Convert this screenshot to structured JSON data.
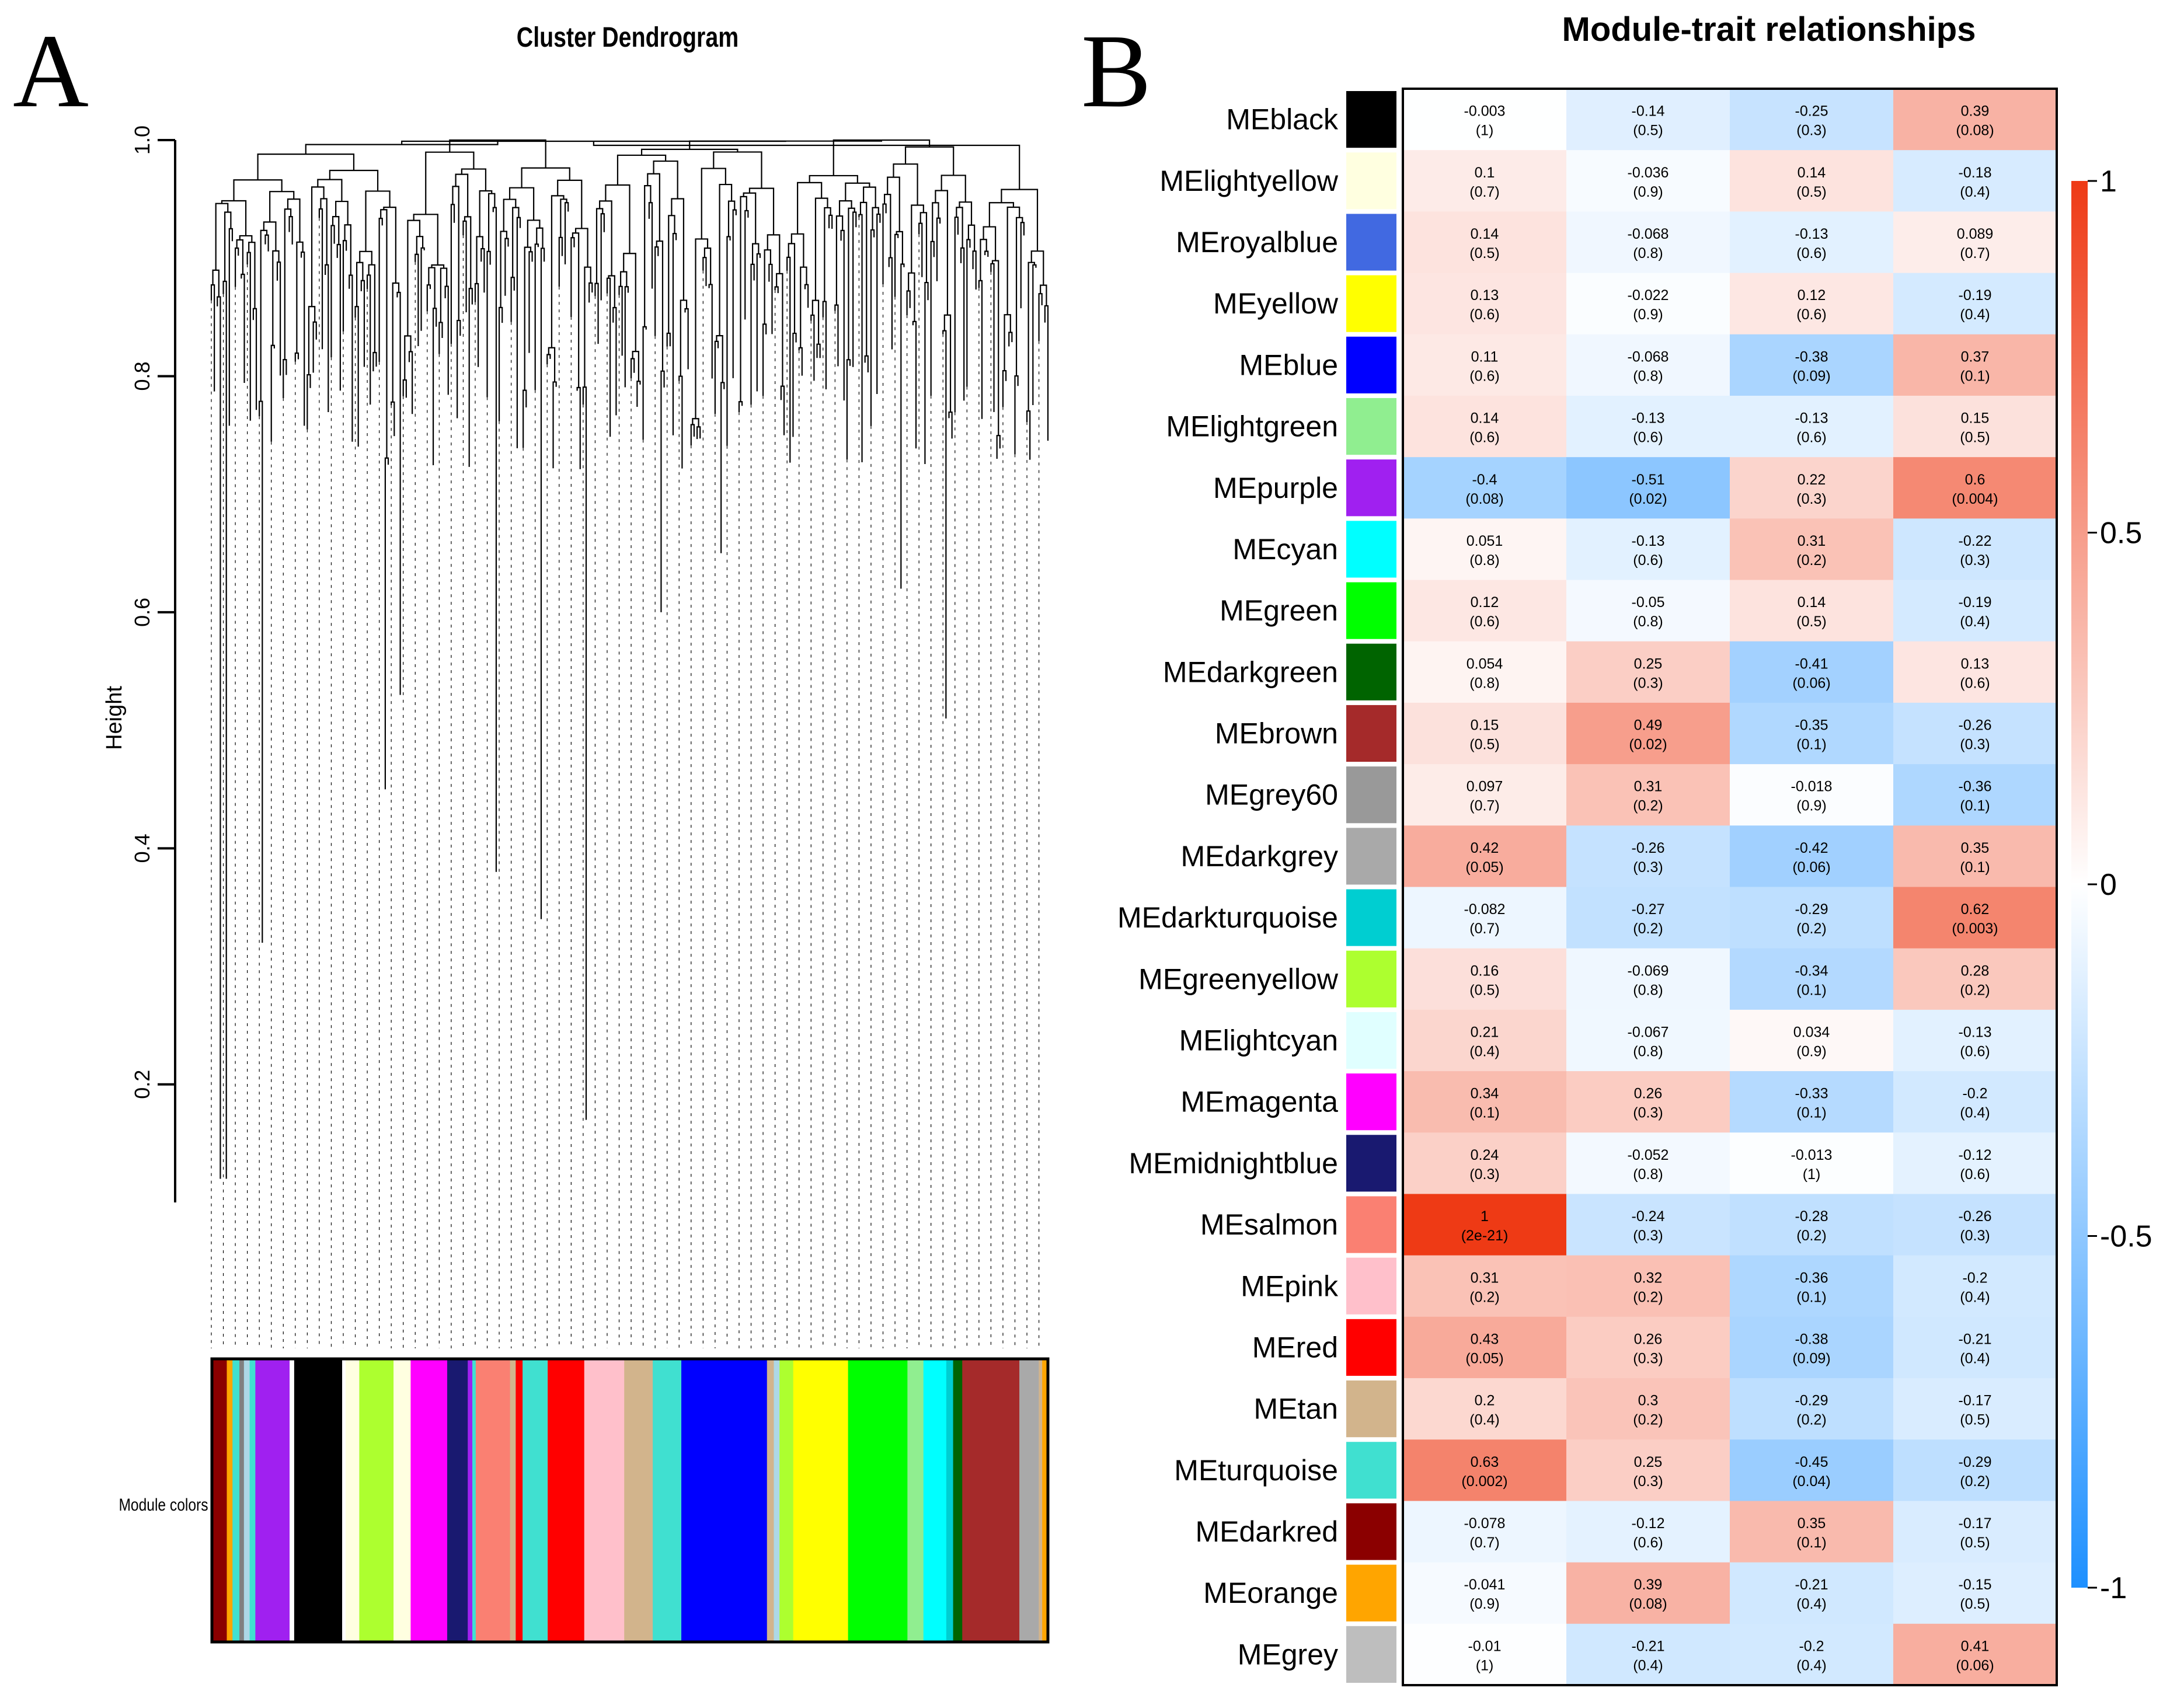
{
  "panels": {
    "a": {
      "letter": "A"
    },
    "b": {
      "letter": "B"
    }
  },
  "chart_data": [
    {
      "type": "dendrogram",
      "title": "Cluster Dendrogram",
      "ylabel": "Height",
      "yticks": [
        0.2,
        0.4,
        0.6,
        0.8,
        1.0
      ],
      "ytick_labels": [
        "0.2",
        "0.4",
        "0.6",
        "0.8",
        "1.0"
      ],
      "ylim": [
        0.1,
        1.0
      ],
      "color_bar_label": "Module colors",
      "module_color_bands": [
        {
          "color": "#8b0000",
          "weight": 1.2
        },
        {
          "color": "#ffa500",
          "weight": 0.5
        },
        {
          "color": "#40e0d0",
          "weight": 0.6
        },
        {
          "color": "#808080",
          "weight": 0.4
        },
        {
          "color": "#add8e6",
          "weight": 0.5
        },
        {
          "color": "#40e0d0",
          "weight": 0.5
        },
        {
          "color": "#a020f0",
          "weight": 3.0
        },
        {
          "color": "#ffffff",
          "weight": 0.4
        },
        {
          "color": "#000000",
          "weight": 4.2
        },
        {
          "color": "#ffffff",
          "weight": 0.3
        },
        {
          "color": "#ffffe0",
          "weight": 1.2
        },
        {
          "color": "#adff2f",
          "weight": 3.0
        },
        {
          "color": "#ffffe0",
          "weight": 1.5
        },
        {
          "color": "#ff00ff",
          "weight": 3.2
        },
        {
          "color": "#191970",
          "weight": 1.8
        },
        {
          "color": "#a020f0",
          "weight": 0.4
        },
        {
          "color": "#40e0d0",
          "weight": 0.3
        },
        {
          "color": "#fa8072",
          "weight": 3.0
        },
        {
          "color": "#d2b48c",
          "weight": 0.5
        },
        {
          "color": "#ff0000",
          "weight": 0.6
        },
        {
          "color": "#40e0d0",
          "weight": 2.2
        },
        {
          "color": "#ff0000",
          "weight": 3.2
        },
        {
          "color": "#ffc0cb",
          "weight": 3.5
        },
        {
          "color": "#d2b48c",
          "weight": 2.5
        },
        {
          "color": "#40e0d0",
          "weight": 2.5
        },
        {
          "color": "#0000ff",
          "weight": 7.5
        },
        {
          "color": "#d2b48c",
          "weight": 0.6
        },
        {
          "color": "#add8e6",
          "weight": 0.5
        },
        {
          "color": "#adff2f",
          "weight": 1.2
        },
        {
          "color": "#ffff00",
          "weight": 4.8
        },
        {
          "color": "#00ff00",
          "weight": 5.2
        },
        {
          "color": "#90ee90",
          "weight": 1.4
        },
        {
          "color": "#00ffff",
          "weight": 2.0
        },
        {
          "color": "#00ced1",
          "weight": 0.6
        },
        {
          "color": "#006400",
          "weight": 0.8
        },
        {
          "color": "#a52a2a",
          "weight": 5.0
        },
        {
          "color": "#a9a9a9",
          "weight": 1.7
        },
        {
          "color": "#d2b48c",
          "weight": 0.3
        },
        {
          "color": "#ffa500",
          "weight": 0.4
        }
      ]
    },
    {
      "type": "heatmap",
      "title": "Module-trait relationships",
      "value_range": [
        -1,
        1
      ],
      "colorbar_ticks": [
        1,
        0.5,
        0,
        -0.5,
        -1
      ],
      "colorbar_tick_labels": [
        "1",
        "0.5",
        "0",
        "-0.5",
        "-1"
      ],
      "colorbar_colors": {
        "high": "#ee3a15",
        "mid": "#ffffff",
        "low": "#1e90ff"
      },
      "rows": [
        {
          "name": "MEblack",
          "color": "#000000",
          "values": [
            -0.003,
            -0.14,
            -0.25,
            0.39
          ],
          "labels": [
            "-0.003",
            "-0.14",
            "-0.25",
            "0.39"
          ],
          "pvalues": [
            "(1)",
            "(0.5)",
            "(0.3)",
            "(0.08)"
          ]
        },
        {
          "name": "MElightyellow",
          "color": "#ffffe0",
          "values": [
            0.1,
            -0.036,
            0.14,
            -0.18
          ],
          "labels": [
            "0.1",
            "-0.036",
            "0.14",
            "-0.18"
          ],
          "pvalues": [
            "(0.7)",
            "(0.9)",
            "(0.5)",
            "(0.4)"
          ]
        },
        {
          "name": "MEroyalblue",
          "color": "#4169e1",
          "values": [
            0.14,
            -0.068,
            -0.13,
            0.089
          ],
          "labels": [
            "0.14",
            "-0.068",
            "-0.13",
            "0.089"
          ],
          "pvalues": [
            "(0.5)",
            "(0.8)",
            "(0.6)",
            "(0.7)"
          ]
        },
        {
          "name": "MEyellow",
          "color": "#ffff00",
          "values": [
            0.13,
            -0.022,
            0.12,
            -0.19
          ],
          "labels": [
            "0.13",
            "-0.022",
            "0.12",
            "-0.19"
          ],
          "pvalues": [
            "(0.6)",
            "(0.9)",
            "(0.6)",
            "(0.4)"
          ]
        },
        {
          "name": "MEblue",
          "color": "#0000ff",
          "values": [
            0.11,
            -0.068,
            -0.38,
            0.37
          ],
          "labels": [
            "0.11",
            "-0.068",
            "-0.38",
            "0.37"
          ],
          "pvalues": [
            "(0.6)",
            "(0.8)",
            "(0.09)",
            "(0.1)"
          ]
        },
        {
          "name": "MElightgreen",
          "color": "#90ee90",
          "values": [
            0.14,
            -0.13,
            -0.13,
            0.15
          ],
          "labels": [
            "0.14",
            "-0.13",
            "-0.13",
            "0.15"
          ],
          "pvalues": [
            "(0.6)",
            "(0.6)",
            "(0.6)",
            "(0.5)"
          ]
        },
        {
          "name": "MEpurple",
          "color": "#a020f0",
          "values": [
            -0.4,
            -0.51,
            0.22,
            0.6
          ],
          "labels": [
            "-0.4",
            "-0.51",
            "0.22",
            "0.6"
          ],
          "pvalues": [
            "(0.08)",
            "(0.02)",
            "(0.3)",
            "(0.004)"
          ]
        },
        {
          "name": "MEcyan",
          "color": "#00ffff",
          "values": [
            0.051,
            -0.13,
            0.31,
            -0.22
          ],
          "labels": [
            "0.051",
            "-0.13",
            "0.31",
            "-0.22"
          ],
          "pvalues": [
            "(0.8)",
            "(0.6)",
            "(0.2)",
            "(0.3)"
          ]
        },
        {
          "name": "MEgreen",
          "color": "#00ff00",
          "values": [
            0.12,
            -0.05,
            0.14,
            -0.19
          ],
          "labels": [
            "0.12",
            "-0.05",
            "0.14",
            "-0.19"
          ],
          "pvalues": [
            "(0.6)",
            "(0.8)",
            "(0.5)",
            "(0.4)"
          ]
        },
        {
          "name": "MEdarkgreen",
          "color": "#006400",
          "values": [
            0.054,
            0.25,
            -0.41,
            0.13
          ],
          "labels": [
            "0.054",
            "0.25",
            "-0.41",
            "0.13"
          ],
          "pvalues": [
            "(0.8)",
            "(0.3)",
            "(0.06)",
            "(0.6)"
          ]
        },
        {
          "name": "MEbrown",
          "color": "#a52a2a",
          "values": [
            0.15,
            0.49,
            -0.35,
            -0.26
          ],
          "labels": [
            "0.15",
            "0.49",
            "-0.35",
            "-0.26"
          ],
          "pvalues": [
            "(0.5)",
            "(0.02)",
            "(0.1)",
            "(0.3)"
          ]
        },
        {
          "name": "MEgrey60",
          "color": "#999999",
          "values": [
            0.097,
            0.31,
            -0.018,
            -0.36
          ],
          "labels": [
            "0.097",
            "0.31",
            "-0.018",
            "-0.36"
          ],
          "pvalues": [
            "(0.7)",
            "(0.2)",
            "(0.9)",
            "(0.1)"
          ]
        },
        {
          "name": "MEdarkgrey",
          "color": "#a9a9a9",
          "values": [
            0.42,
            -0.26,
            -0.42,
            0.35
          ],
          "labels": [
            "0.42",
            "-0.26",
            "-0.42",
            "0.35"
          ],
          "pvalues": [
            "(0.05)",
            "(0.3)",
            "(0.06)",
            "(0.1)"
          ]
        },
        {
          "name": "MEdarkturquoise",
          "color": "#00ced1",
          "values": [
            -0.082,
            -0.27,
            -0.29,
            0.62
          ],
          "labels": [
            "-0.082",
            "-0.27",
            "-0.29",
            "0.62"
          ],
          "pvalues": [
            "(0.7)",
            "(0.2)",
            "(0.2)",
            "(0.003)"
          ]
        },
        {
          "name": "MEgreenyellow",
          "color": "#adff2f",
          "values": [
            0.16,
            -0.069,
            -0.34,
            0.28
          ],
          "labels": [
            "0.16",
            "-0.069",
            "-0.34",
            "0.28"
          ],
          "pvalues": [
            "(0.5)",
            "(0.8)",
            "(0.1)",
            "(0.2)"
          ]
        },
        {
          "name": "MElightcyan",
          "color": "#e0ffff",
          "values": [
            0.21,
            -0.067,
            0.034,
            -0.13
          ],
          "labels": [
            "0.21",
            "-0.067",
            "0.034",
            "-0.13"
          ],
          "pvalues": [
            "(0.4)",
            "(0.8)",
            "(0.9)",
            "(0.6)"
          ]
        },
        {
          "name": "MEmagenta",
          "color": "#ff00ff",
          "values": [
            0.34,
            0.26,
            -0.33,
            -0.2
          ],
          "labels": [
            "0.34",
            "0.26",
            "-0.33",
            "-0.2"
          ],
          "pvalues": [
            "(0.1)",
            "(0.3)",
            "(0.1)",
            "(0.4)"
          ]
        },
        {
          "name": "MEmidnightblue",
          "color": "#191970",
          "values": [
            0.24,
            -0.052,
            -0.013,
            -0.12
          ],
          "labels": [
            "0.24",
            "-0.052",
            "-0.013",
            "-0.12"
          ],
          "pvalues": [
            "(0.3)",
            "(0.8)",
            "(1)",
            "(0.6)"
          ]
        },
        {
          "name": "MEsalmon",
          "color": "#fa8072",
          "values": [
            1,
            -0.24,
            -0.28,
            -0.26
          ],
          "labels": [
            "1",
            "-0.24",
            "-0.28",
            "-0.26"
          ],
          "pvalues": [
            "(2e-21)",
            "(0.3)",
            "(0.2)",
            "(0.3)"
          ]
        },
        {
          "name": "MEpink",
          "color": "#ffc0cb",
          "values": [
            0.31,
            0.32,
            -0.36,
            -0.2
          ],
          "labels": [
            "0.31",
            "0.32",
            "-0.36",
            "-0.2"
          ],
          "pvalues": [
            "(0.2)",
            "(0.2)",
            "(0.1)",
            "(0.4)"
          ]
        },
        {
          "name": "MEred",
          "color": "#ff0000",
          "values": [
            0.43,
            0.26,
            -0.38,
            -0.21
          ],
          "labels": [
            "0.43",
            "0.26",
            "-0.38",
            "-0.21"
          ],
          "pvalues": [
            "(0.05)",
            "(0.3)",
            "(0.09)",
            "(0.4)"
          ]
        },
        {
          "name": "MEtan",
          "color": "#d2b48c",
          "values": [
            0.2,
            0.3,
            -0.29,
            -0.17
          ],
          "labels": [
            "0.2",
            "0.3",
            "-0.29",
            "-0.17"
          ],
          "pvalues": [
            "(0.4)",
            "(0.2)",
            "(0.2)",
            "(0.5)"
          ]
        },
        {
          "name": "MEturquoise",
          "color": "#40e0d0",
          "values": [
            0.63,
            0.25,
            -0.45,
            -0.29
          ],
          "labels": [
            "0.63",
            "0.25",
            "-0.45",
            "-0.29"
          ],
          "pvalues": [
            "(0.002)",
            "(0.3)",
            "(0.04)",
            "(0.2)"
          ]
        },
        {
          "name": "MEdarkred",
          "color": "#8b0000",
          "values": [
            -0.078,
            -0.12,
            0.35,
            -0.17
          ],
          "labels": [
            "-0.078",
            "-0.12",
            "0.35",
            "-0.17"
          ],
          "pvalues": [
            "(0.7)",
            "(0.6)",
            "(0.1)",
            "(0.5)"
          ]
        },
        {
          "name": "MEorange",
          "color": "#ffa500",
          "values": [
            -0.041,
            0.39,
            -0.21,
            -0.15
          ],
          "labels": [
            "-0.041",
            "0.39",
            "-0.21",
            "-0.15"
          ],
          "pvalues": [
            "(0.9)",
            "(0.08)",
            "(0.4)",
            "(0.5)"
          ]
        },
        {
          "name": "MEgrey",
          "color": "#bebebe",
          "values": [
            -0.01,
            -0.21,
            -0.2,
            0.41
          ],
          "labels": [
            "-0.01",
            "-0.21",
            "-0.2",
            "0.41"
          ],
          "pvalues": [
            "(1)",
            "(0.4)",
            "(0.4)",
            "(0.06)"
          ]
        }
      ]
    }
  ]
}
